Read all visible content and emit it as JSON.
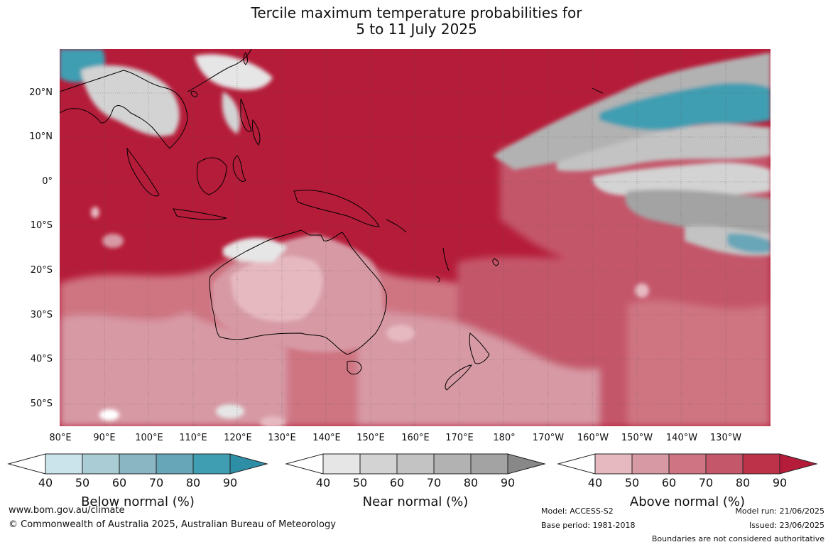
{
  "title": {
    "line1": "Tercile maximum temperature probabilities for",
    "line2": "5 to 11 July 2025"
  },
  "map": {
    "lat_labels": [
      "20°N",
      "10°N",
      "0°",
      "10°S",
      "20°S",
      "30°S",
      "40°S",
      "50°S"
    ],
    "lon_labels": [
      "80°E",
      "90°E",
      "100°E",
      "110°E",
      "120°E",
      "130°E",
      "140°E",
      "150°E",
      "160°E",
      "170°E",
      "180°",
      "170°W",
      "160°W",
      "150°W",
      "140°W",
      "130°W"
    ],
    "colors": {
      "ocean_base": "#b51c39",
      "coastline": "#000000",
      "gridline": "#555555"
    }
  },
  "colorbars": [
    {
      "title": "Below normal (%)",
      "ticks": [
        "40",
        "50",
        "60",
        "70",
        "80",
        "90"
      ],
      "colors": [
        "#ffffff",
        "#cbe3ea",
        "#a9ccd5",
        "#8ab6c4",
        "#67a6b8",
        "#3f9eb2",
        "#2e8ea6"
      ]
    },
    {
      "title": "Near normal (%)",
      "ticks": [
        "40",
        "50",
        "60",
        "70",
        "80",
        "90"
      ],
      "colors": [
        "#ffffff",
        "#e6e6e6",
        "#d3d3d3",
        "#c3c3c3",
        "#b2b2b2",
        "#a3a3a3",
        "#888888"
      ]
    },
    {
      "title": "Above normal (%)",
      "ticks": [
        "40",
        "50",
        "60",
        "70",
        "80",
        "90"
      ],
      "colors": [
        "#ffffff",
        "#e6b9c1",
        "#d79aa5",
        "#cf7482",
        "#c4576a",
        "#bd3249",
        "#b51c39"
      ]
    }
  ],
  "footer": {
    "url": "www.bom.gov.au/climate",
    "copyright": "© Commonwealth of Australia 2025, Australian Bureau of Meteorology",
    "model": "Model: ACCESS-S2",
    "base_period": "Base period: 1981-2018",
    "model_run": "Model run: 21/06/2025",
    "issued": "Issued: 23/06/2025",
    "boundaries": "Boundaries are not considered authoritative"
  }
}
